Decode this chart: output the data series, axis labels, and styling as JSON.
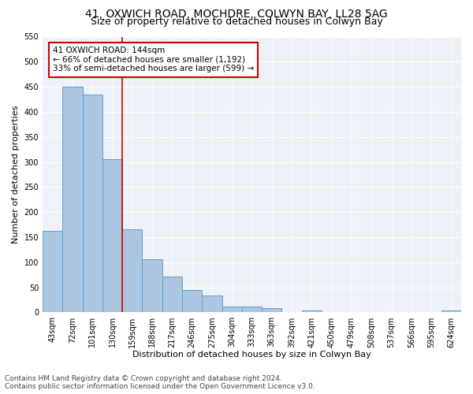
{
  "title1": "41, OXWICH ROAD, MOCHDRE, COLWYN BAY, LL28 5AG",
  "title2": "Size of property relative to detached houses in Colwyn Bay",
  "xlabel": "Distribution of detached houses by size in Colwyn Bay",
  "ylabel": "Number of detached properties",
  "categories": [
    "43sqm",
    "72sqm",
    "101sqm",
    "130sqm",
    "159sqm",
    "188sqm",
    "217sqm",
    "246sqm",
    "275sqm",
    "304sqm",
    "333sqm",
    "363sqm",
    "392sqm",
    "421sqm",
    "450sqm",
    "479sqm",
    "508sqm",
    "537sqm",
    "566sqm",
    "595sqm",
    "624sqm"
  ],
  "values": [
    163,
    450,
    435,
    306,
    165,
    106,
    72,
    44,
    33,
    12,
    11,
    9,
    0,
    4,
    1,
    1,
    0,
    0,
    1,
    0,
    4
  ],
  "bar_color": "#adc6e0",
  "bar_edge_color": "#5a9fd4",
  "vline_x": 3.5,
  "vline_color": "#cc0000",
  "annotation_text": "41 OXWICH ROAD: 144sqm\n← 66% of detached houses are smaller (1,192)\n33% of semi-detached houses are larger (599) →",
  "annotation_box_color": "#ffffff",
  "annotation_box_edge": "#cc0000",
  "ylim": [
    0,
    550
  ],
  "yticks": [
    0,
    50,
    100,
    150,
    200,
    250,
    300,
    350,
    400,
    450,
    500,
    550
  ],
  "bg_color": "#eef2f8",
  "footer_text": "Contains HM Land Registry data © Crown copyright and database right 2024.\nContains public sector information licensed under the Open Government Licence v3.0.",
  "title_fontsize": 10,
  "subtitle_fontsize": 9,
  "axis_label_fontsize": 8,
  "tick_fontsize": 7,
  "annotation_fontsize": 7.5,
  "footer_fontsize": 6.5
}
